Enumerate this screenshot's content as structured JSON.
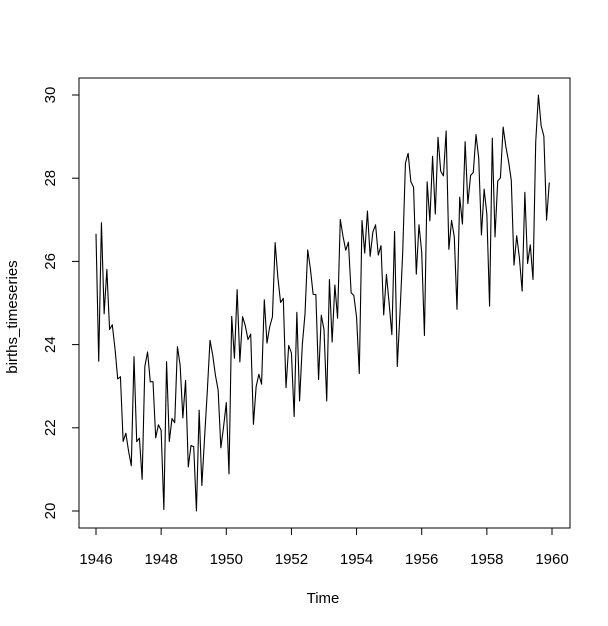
{
  "chart_data": {
    "type": "line",
    "title": "",
    "xlabel": "Time",
    "ylabel": "births_timeseries",
    "xlim": [
      1946.0,
      1960.0
    ],
    "ylim": [
      20,
      30
    ],
    "x_ticks": [
      1946,
      1948,
      1950,
      1952,
      1954,
      1956,
      1958,
      1960
    ],
    "x_tick_labels": [
      "1946",
      "1948",
      "1950",
      "1952",
      "1954",
      "1956",
      "1958",
      "1960"
    ],
    "y_ticks": [
      20,
      22,
      24,
      26,
      28,
      30
    ],
    "y_tick_labels": [
      "20",
      "22",
      "24",
      "26",
      "28",
      "30"
    ],
    "series": [
      {
        "name": "births_timeseries",
        "start": 1946.0,
        "frequency": 12,
        "color": "#000000",
        "values": [
          26.663,
          23.598,
          26.931,
          24.74,
          25.806,
          24.364,
          24.477,
          23.901,
          23.175,
          23.227,
          21.672,
          21.87,
          21.439,
          21.089,
          23.709,
          21.669,
          21.752,
          20.761,
          23.479,
          23.824,
          23.105,
          23.11,
          21.759,
          22.073,
          21.937,
          20.035,
          23.59,
          21.672,
          22.222,
          22.123,
          23.95,
          23.504,
          22.238,
          23.142,
          21.059,
          21.573,
          21.548,
          20.0,
          22.424,
          20.615,
          21.761,
          22.874,
          24.104,
          23.748,
          23.262,
          22.907,
          21.519,
          22.025,
          22.604,
          20.894,
          24.677,
          23.673,
          25.32,
          23.583,
          24.671,
          24.454,
          24.122,
          24.252,
          22.084,
          22.991,
          23.287,
          23.049,
          25.076,
          24.037,
          24.43,
          24.667,
          26.451,
          25.618,
          25.014,
          25.11,
          22.964,
          23.981,
          23.798,
          22.27,
          24.775,
          22.646,
          23.988,
          24.737,
          26.276,
          25.816,
          25.21,
          25.199,
          23.162,
          24.707,
          24.364,
          22.644,
          25.565,
          24.062,
          25.431,
          24.635,
          27.009,
          26.606,
          26.268,
          26.462,
          25.246,
          25.18,
          24.657,
          23.304,
          26.982,
          26.199,
          27.21,
          26.122,
          26.706,
          26.878,
          26.152,
          26.379,
          24.712,
          25.688,
          24.99,
          24.239,
          26.721,
          23.475,
          24.767,
          26.219,
          28.361,
          28.599,
          27.914,
          27.784,
          25.693,
          26.881,
          26.217,
          24.218,
          27.914,
          26.975,
          28.527,
          27.139,
          28.982,
          28.169,
          28.056,
          29.136,
          26.291,
          26.987,
          26.589,
          24.848,
          27.543,
          26.896,
          28.878,
          27.39,
          28.065,
          28.141,
          29.048,
          28.484,
          26.634,
          27.735,
          27.132,
          24.924,
          28.963,
          26.589,
          27.931,
          28.009,
          29.229,
          28.759,
          28.405,
          27.945,
          25.912,
          26.619,
          26.076,
          25.286,
          27.66,
          25.951,
          26.398,
          25.565,
          28.865,
          30.0,
          29.261,
          29.012,
          26.992,
          27.897
        ]
      }
    ]
  }
}
